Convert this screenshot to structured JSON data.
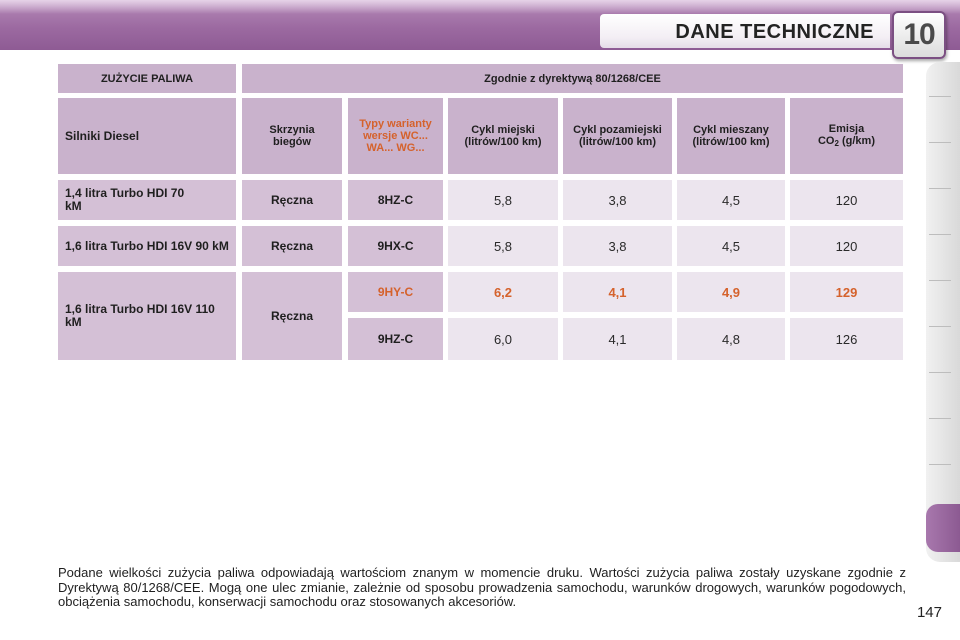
{
  "header": {
    "title": "DANE TECHNICZNE",
    "chapter_number": "10"
  },
  "table": {
    "top_header": {
      "left": "ZUŻYCIE PALIWA",
      "right": "Zgodnie z dyrektywą 80/1268/CEE"
    },
    "columns": {
      "engines": "Silniki Diesel",
      "gearbox": "Skrzynia biegów",
      "types": "Typy warianty wersje WC... WA... WG...",
      "urban": "Cykl miejski (litrów/100 km)",
      "extra_urban": "Cykl pozamiejski (litrów/100 km)",
      "combined": "Cykl mieszany (litrów/100 km)",
      "emission_prefix": "Emisja",
      "emission_co": "CO",
      "emission_sub": "2",
      "emission_unit": " (g/km)"
    },
    "rows": [
      {
        "engine": "1,4 litra Turbo HDI 70 kM",
        "gearbox": "Ręczna",
        "type": "8HZ-C",
        "urban": "5,8",
        "extra": "3,8",
        "combined": "4,5",
        "co2": "120"
      },
      {
        "engine": "1,6 litra Turbo HDI 16V 90 kM",
        "gearbox": "Ręczna",
        "type": "9HX-C",
        "urban": "5,8",
        "extra": "3,8",
        "combined": "4,5",
        "co2": "120"
      },
      {
        "engine": "1,6 litra Turbo HDI 16V 110 kM",
        "gearbox": "Ręczna",
        "type": "9HY-C",
        "urban": "6,2",
        "extra": "4,1",
        "combined": "4,9",
        "co2": "129"
      },
      {
        "type": "9HZ-C",
        "urban": "6,0",
        "extra": "4,1",
        "combined": "4,8",
        "co2": "126"
      }
    ]
  },
  "note": "Podane wielkości zużycia paliwa odpowiadają wartościom znanym w momencie druku. Wartości zużycia paliwa zostały uzyskane zgodnie z Dyrektywą 80/1268/CEE. Mogą one ulec zmianie, zależnie od sposobu prowadzenia samochodu, warunków drogowych, warunków pogodowych, obciążenia samochodu, konserwacji samochodu oraz stosowanych akcesoriów.",
  "page_number": "147",
  "colors": {
    "accent": "#d5622c",
    "brand": "#9c6aa1"
  }
}
